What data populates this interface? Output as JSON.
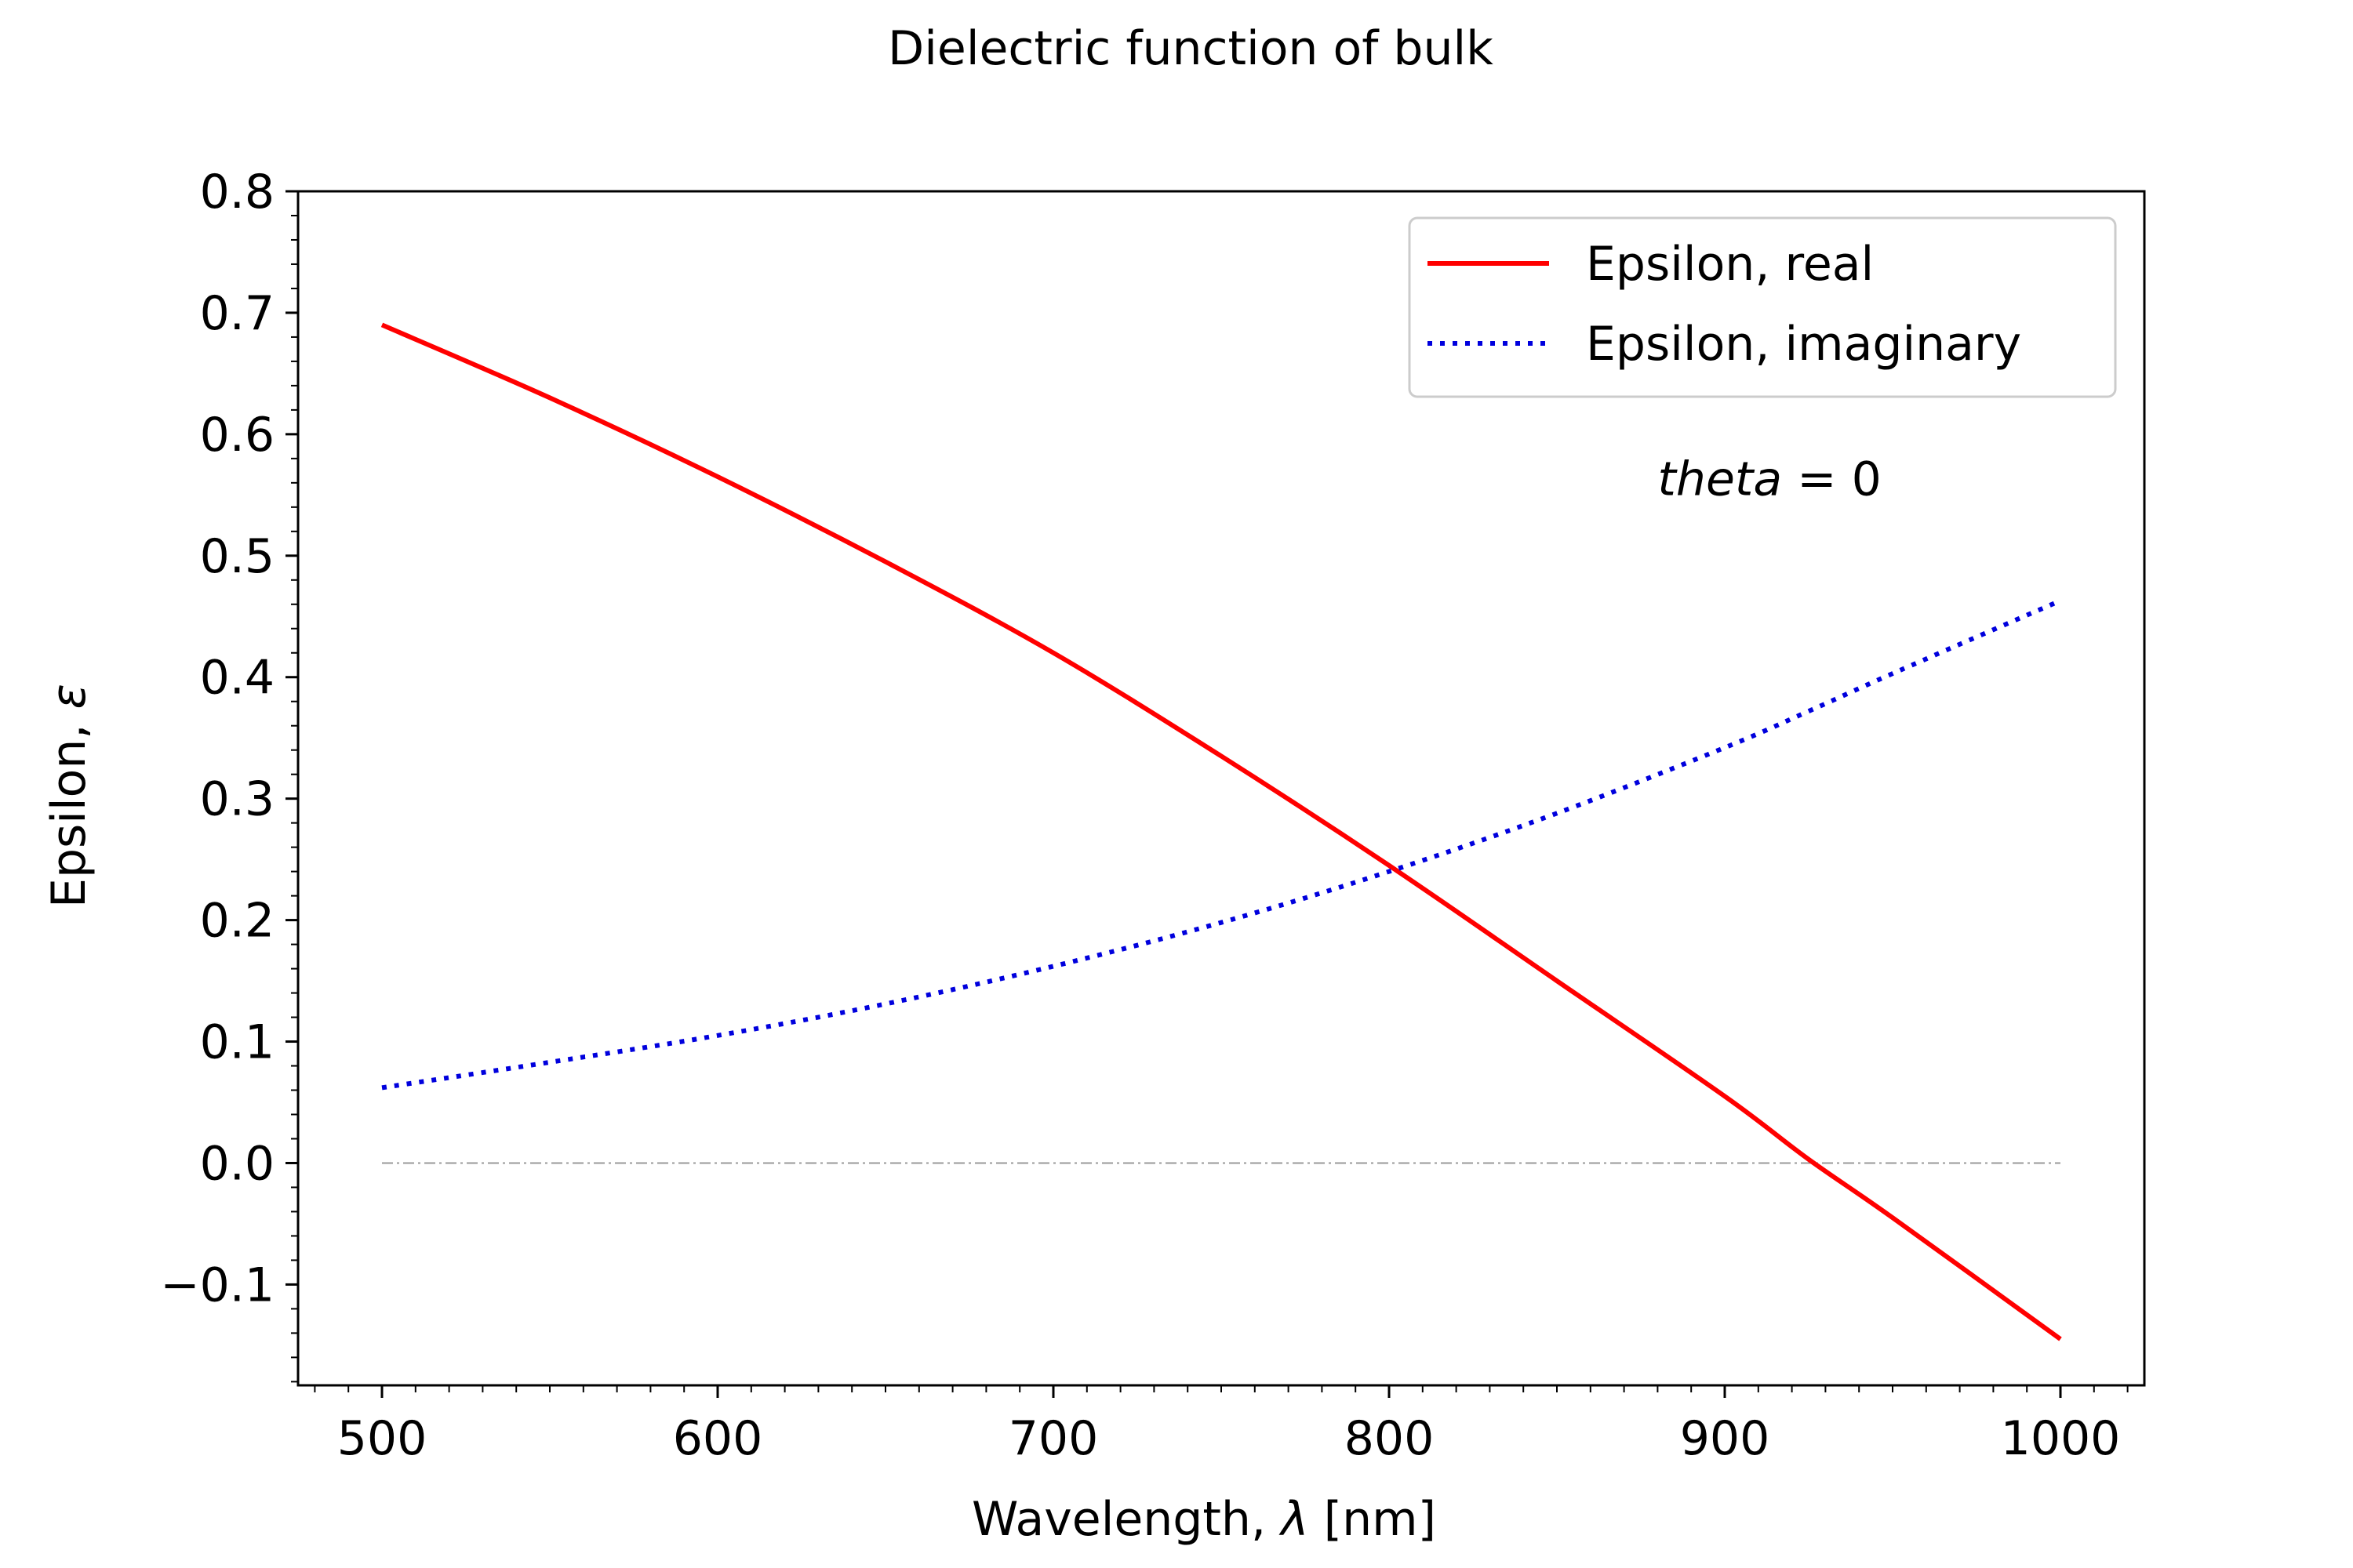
{
  "chart_data": {
    "type": "line",
    "title": "Dielectric function of bulk",
    "xlabel_prefix": "Wavelength, ",
    "xlabel_symbol": "λ",
    "xlabel_suffix": " [nm]",
    "ylabel_prefix": "Epsilon, ",
    "ylabel_symbol": "ε",
    "xlim": [
      475,
      1025
    ],
    "ylim": [
      -0.183,
      0.8
    ],
    "x_ticks": [
      500,
      600,
      700,
      800,
      900,
      1000
    ],
    "y_ticks": [
      -0.1,
      0.0,
      0.1,
      0.2,
      0.3,
      0.4,
      0.5,
      0.6,
      0.7,
      0.8
    ],
    "y_tick_labels": [
      "−0.1",
      "0.0",
      "0.1",
      "0.2",
      "0.3",
      "0.4",
      "0.5",
      "0.6",
      "0.7",
      "0.8"
    ],
    "x_tick_labels": [
      "500",
      "600",
      "700",
      "800",
      "900",
      "1000"
    ],
    "x_minor_step": 10,
    "y_minor_step": 0.02,
    "grid": false,
    "legend_position": "top-right",
    "annotation": {
      "italic": "theta",
      "rest": " = 0",
      "x": 880,
      "y": 0.55
    },
    "reference_line": {
      "y": 0.0,
      "x_range": [
        500,
        1000
      ],
      "color": "#999999",
      "style": "dashdot"
    },
    "x": [
      500,
      550,
      600,
      650,
      700,
      750,
      800,
      850,
      900,
      925,
      950,
      1000
    ],
    "series": [
      {
        "name": "Epsilon, real",
        "color": "#ff0000",
        "style": "solid",
        "values": [
          0.69,
          0.63,
          0.565,
          0.495,
          0.42,
          0.335,
          0.245,
          0.15,
          0.055,
          0.003,
          -0.045,
          -0.145
        ]
      },
      {
        "name": "Epsilon, imaginary",
        "color": "#0000dd",
        "style": "dotted",
        "values": [
          0.062,
          0.083,
          0.105,
          0.131,
          0.162,
          0.198,
          0.24,
          0.288,
          0.342,
          0.372,
          0.403,
          0.463
        ]
      }
    ]
  }
}
